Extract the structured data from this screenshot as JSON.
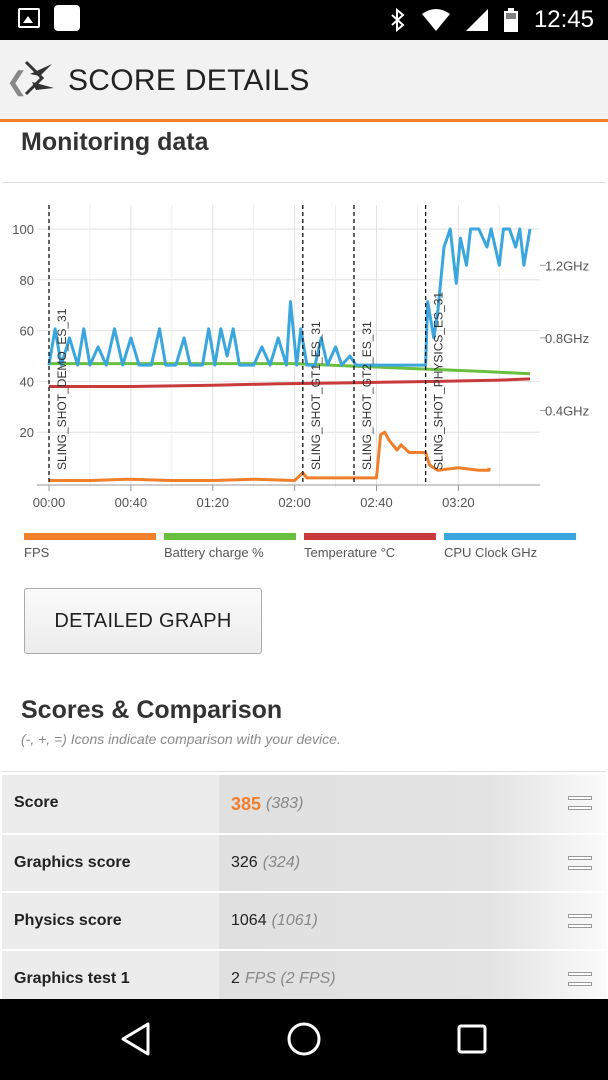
{
  "status_bar": {
    "time": "12:45"
  },
  "app_bar": {
    "back_glyph": "❮",
    "title": "SCORE DETAILS"
  },
  "monitoring": {
    "title": "Monitoring data",
    "legend": [
      {
        "label": "FPS",
        "color": "#f07f2b"
      },
      {
        "label": "Battery charge %",
        "color": "#6abf3f"
      },
      {
        "label": "Temperature °C",
        "color": "#c93a3a"
      },
      {
        "label": "CPU Clock GHz",
        "color": "#3aa6dd"
      }
    ],
    "detailed_graph_button": "DETAILED GRAPH"
  },
  "chart_data": {
    "type": "line",
    "x_ticks": [
      "00:00",
      "00:40",
      "01:20",
      "02:00",
      "02:40",
      "03:20"
    ],
    "y_left_ticks": [
      "20",
      "40",
      "60",
      "80",
      "100"
    ],
    "y_right_ticks": [
      "0.4GHz",
      "0.8GHz",
      "1.2GHz"
    ],
    "ylim_left": [
      0,
      100
    ],
    "ylim_right": [
      0,
      1.4
    ],
    "x_range_seconds": [
      0,
      235
    ],
    "markers": [
      {
        "label": "SLING_SHOT_DEMO_ES_31",
        "t": 0
      },
      {
        "label": "SLING_SHOT_GT1_ES_31",
        "t": 124
      },
      {
        "label": "SLING_SHOT_GT2_ES_31",
        "t": 149
      },
      {
        "label": "SLING_SHOT_PHYSICS_ES_31",
        "t": 184
      }
    ],
    "series": [
      {
        "name": "Battery charge %",
        "axis": "left",
        "color": "#6abf3f",
        "points": [
          [
            0,
            47
          ],
          [
            60,
            47
          ],
          [
            120,
            47
          ],
          [
            150,
            46
          ],
          [
            180,
            45
          ],
          [
            210,
            44
          ],
          [
            235,
            43
          ]
        ]
      },
      {
        "name": "Temperature °C",
        "axis": "left",
        "color": "#c93a3a",
        "points": [
          [
            0,
            38
          ],
          [
            40,
            38
          ],
          [
            80,
            38.5
          ],
          [
            110,
            39
          ],
          [
            150,
            39.5
          ],
          [
            190,
            40
          ],
          [
            220,
            40.5
          ],
          [
            235,
            41
          ]
        ]
      },
      {
        "name": "FPS",
        "axis": "left",
        "color": "#f07f2b",
        "points": [
          [
            0,
            1
          ],
          [
            20,
            1
          ],
          [
            40,
            1.5
          ],
          [
            60,
            1
          ],
          [
            80,
            1
          ],
          [
            100,
            1.5
          ],
          [
            120,
            1
          ],
          [
            124,
            4
          ],
          [
            126,
            2
          ],
          [
            140,
            2
          ],
          [
            160,
            2
          ],
          [
            162,
            19
          ],
          [
            164,
            20
          ],
          [
            166,
            17
          ],
          [
            170,
            13
          ],
          [
            172,
            15
          ],
          [
            176,
            12
          ],
          [
            180,
            12
          ],
          [
            184,
            12
          ],
          [
            186,
            7
          ],
          [
            190,
            5
          ],
          [
            200,
            6
          ],
          [
            210,
            5
          ],
          [
            215,
            5
          ],
          [
            215,
            6
          ]
        ]
      },
      {
        "name": "CPU Clock GHz",
        "axis": "right",
        "color": "#3aa6dd",
        "points": [
          [
            0,
            0.65
          ],
          [
            3,
            0.85
          ],
          [
            6,
            0.65
          ],
          [
            10,
            0.8
          ],
          [
            14,
            0.65
          ],
          [
            17,
            0.85
          ],
          [
            20,
            0.65
          ],
          [
            24,
            0.75
          ],
          [
            28,
            0.65
          ],
          [
            32,
            0.85
          ],
          [
            36,
            0.65
          ],
          [
            40,
            0.8
          ],
          [
            44,
            0.65
          ],
          [
            50,
            0.65
          ],
          [
            54,
            0.85
          ],
          [
            57,
            0.65
          ],
          [
            62,
            0.65
          ],
          [
            66,
            0.8
          ],
          [
            69,
            0.65
          ],
          [
            75,
            0.65
          ],
          [
            78,
            0.85
          ],
          [
            81,
            0.65
          ],
          [
            84,
            0.85
          ],
          [
            87,
            0.7
          ],
          [
            90,
            0.85
          ],
          [
            93,
            0.65
          ],
          [
            100,
            0.65
          ],
          [
            104,
            0.75
          ],
          [
            108,
            0.65
          ],
          [
            112,
            0.8
          ],
          [
            116,
            0.65
          ],
          [
            118,
            1.0
          ],
          [
            121,
            0.65
          ],
          [
            123,
            0.85
          ],
          [
            126,
            0.65
          ],
          [
            130,
            0.65
          ],
          [
            133,
            0.8
          ],
          [
            136,
            0.65
          ],
          [
            140,
            0.75
          ],
          [
            143,
            0.65
          ],
          [
            147,
            0.7
          ],
          [
            150,
            0.65
          ],
          [
            160,
            0.65
          ],
          [
            170,
            0.65
          ],
          [
            180,
            0.65
          ],
          [
            184,
            0.65
          ],
          [
            185,
            1.0
          ],
          [
            188,
            0.8
          ],
          [
            190,
            0.95
          ],
          [
            193,
            1.3
          ],
          [
            196,
            1.4
          ],
          [
            199,
            1.1
          ],
          [
            201,
            1.35
          ],
          [
            204,
            1.2
          ],
          [
            206,
            1.4
          ],
          [
            210,
            1.4
          ],
          [
            214,
            1.3
          ],
          [
            216,
            1.4
          ],
          [
            220,
            1.2
          ],
          [
            222,
            1.4
          ],
          [
            225,
            1.4
          ],
          [
            228,
            1.3
          ],
          [
            230,
            1.4
          ],
          [
            232,
            1.2
          ],
          [
            235,
            1.4
          ]
        ]
      }
    ]
  },
  "scores": {
    "title": "Scores & Comparison",
    "subtitle": "(-, +, =) Icons indicate comparison with your device.",
    "rows": [
      {
        "label": "Score",
        "value": "385",
        "compare": "(383)"
      },
      {
        "label": "Graphics score",
        "value": "326",
        "compare": "(324)"
      },
      {
        "label": "Physics score",
        "value": "1064",
        "compare": "(1061)"
      },
      {
        "label": "Graphics test 1",
        "value": "2",
        "compare": "FPS (2 FPS)"
      }
    ]
  }
}
